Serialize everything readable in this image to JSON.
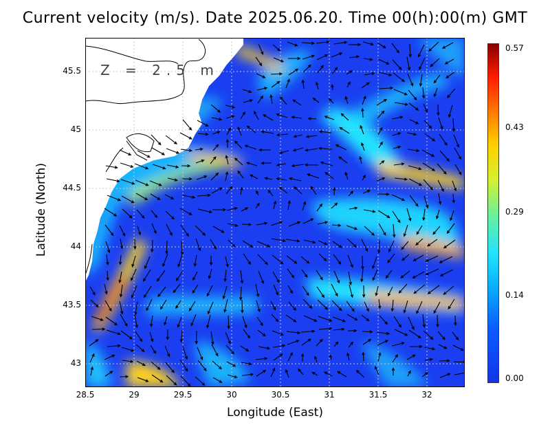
{
  "title": "Current velocity (m/s). Date 2025.06.20. Time 00(h):00(m) GMT",
  "depth_label": "Z = 2.5 m",
  "x_axis": {
    "label": "Longitude (East)",
    "ticks": [
      "28.5",
      "29",
      "29.5",
      "30",
      "30.5",
      "31",
      "31.5",
      "32"
    ]
  },
  "y_axis": {
    "label": "Latitude (North)",
    "ticks": [
      "45.5",
      "45",
      "44.5",
      "44",
      "43.5",
      "43"
    ]
  },
  "colorbar": {
    "ticks": [
      "0.57",
      "0.43",
      "0.29",
      "0.14",
      "0.00"
    ]
  },
  "map_extent": {
    "lon": [
      28.5,
      32.4
    ],
    "lat": [
      42.8,
      45.8
    ]
  },
  "colors": {
    "land": "#ffffff",
    "low": "#1235e6",
    "high": "#8a0000"
  }
}
